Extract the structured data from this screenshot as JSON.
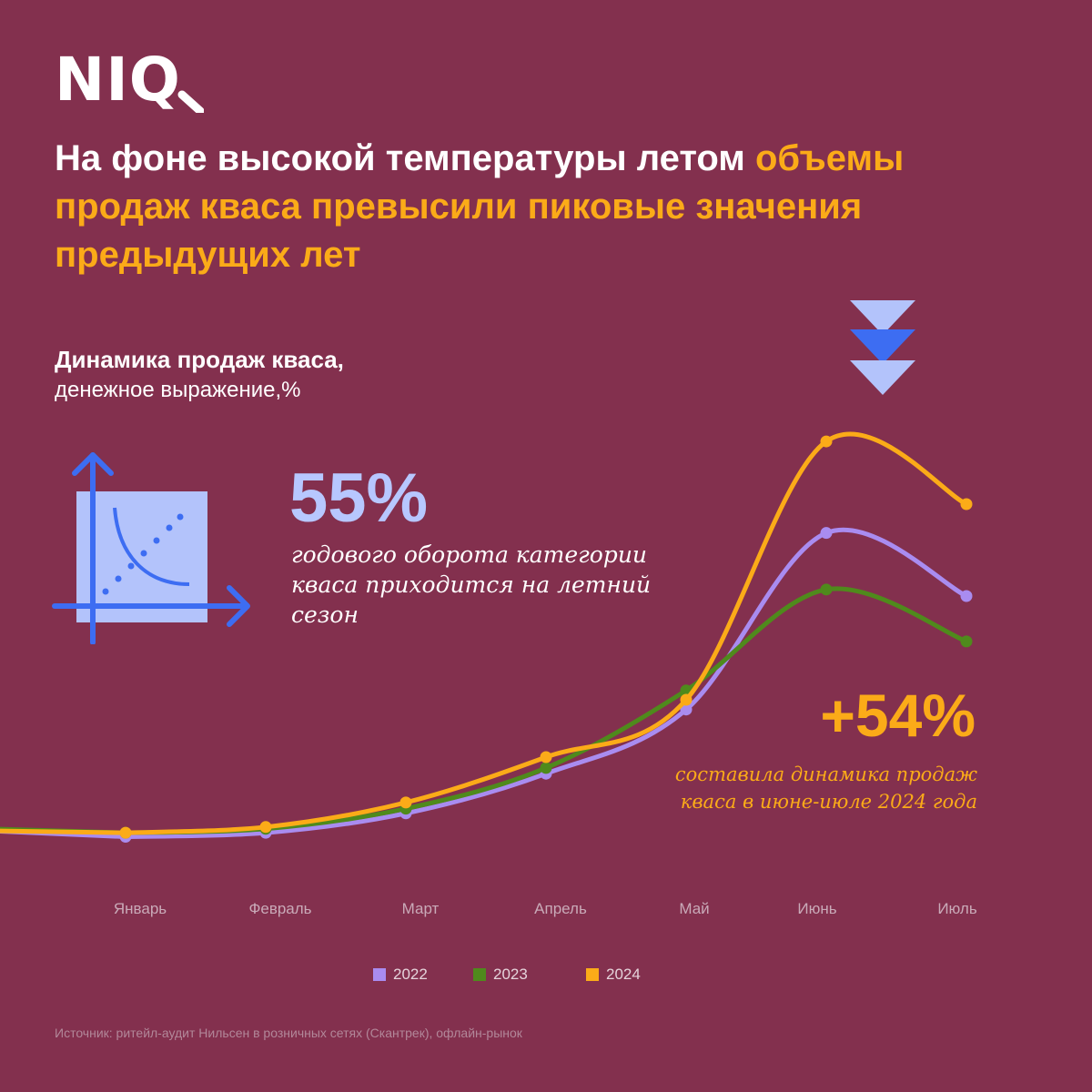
{
  "brand": {
    "logo_text": "NIQ"
  },
  "headline": {
    "part1": "На фоне высокой температуры летом ",
    "part2": "объемы продаж кваса превысили пиковые значения предыдущих лет"
  },
  "subtitle": {
    "line1": "Динамика продаж кваса,",
    "line2": "денежное выражение,%"
  },
  "stat": {
    "value": "55%",
    "description": "годового оборота категории кваса приходится на летний сезон"
  },
  "growth": {
    "value": "+54%",
    "description": "составила динамика продаж кваса в июне-июле 2024 года"
  },
  "icons": {
    "chart_icon": "scatter-axes-icon",
    "arrow_icon": "triple-chevron-down-icon"
  },
  "colors": {
    "background": "#83304e",
    "highlight": "#fbab18",
    "s2022": "#a98cf0",
    "s2023": "#4f8a1c",
    "s2024": "#fbab18"
  },
  "chart_data": {
    "type": "line",
    "categories": [
      "Январь",
      "Февраль",
      "Март",
      "Апрель",
      "Май",
      "Июнь",
      "Июль"
    ],
    "ylim": [
      0,
      100
    ],
    "series": [
      {
        "name": "2022",
        "color": "#a98cf0",
        "values": [
          2.4,
          3.5,
          8.9,
          19.9,
          37.7,
          86.7,
          69.2
        ]
      },
      {
        "name": "2023",
        "color": "#4f8a1c",
        "values": [
          3.5,
          4.6,
          10.2,
          21.5,
          43.0,
          71.0,
          56.6
        ]
      },
      {
        "name": "2024",
        "color": "#fbab18",
        "values": [
          3.5,
          5.1,
          11.9,
          24.5,
          40.4,
          112.1,
          94.7
        ]
      }
    ]
  },
  "source": "Источник: ритейл-аудит Нильсен в розничных сетях (Скантрек), офлайн-рынок"
}
